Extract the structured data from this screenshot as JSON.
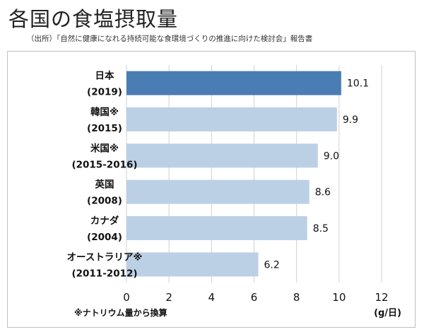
{
  "page": {
    "title": "各国の食塩摂取量",
    "source": "（出所）「自然に健康になれる持続可能な食環境づくりの推進に向けた検討会」報告書"
  },
  "chart_data": {
    "type": "bar",
    "orientation": "horizontal",
    "title": "各国の食塩摂取量",
    "categories": [
      {
        "name": "日本",
        "period": "(2019)"
      },
      {
        "name": "韓国※",
        "period": "(2015)"
      },
      {
        "name": "米国※",
        "period": "(2015-2016)"
      },
      {
        "name": "英国",
        "period": "(2008)"
      },
      {
        "name": "カナダ",
        "period": "(2004)"
      },
      {
        "name": "オーストラリア※",
        "period": "(2011-2012)"
      }
    ],
    "values": [
      10.1,
      9.9,
      9.0,
      8.6,
      8.5,
      6.2
    ],
    "value_labels": [
      "10.1",
      "9.9",
      "9.0",
      "8.6",
      "8.5",
      "6.2"
    ],
    "xlim": [
      0,
      12
    ],
    "xticks": [
      0,
      2,
      4,
      6,
      8,
      10,
      12
    ],
    "xtick_labels": [
      "0",
      "2",
      "4",
      "6",
      "8",
      "10",
      "12"
    ],
    "unit_label": "(g/日)",
    "footnote": "※ナトリウム量から換算",
    "grid": true,
    "colors": {
      "highlight": "#4a7db3",
      "bar": "#bcd0e5",
      "grid": "#d0d0d0"
    },
    "highlight_index": 0
  }
}
